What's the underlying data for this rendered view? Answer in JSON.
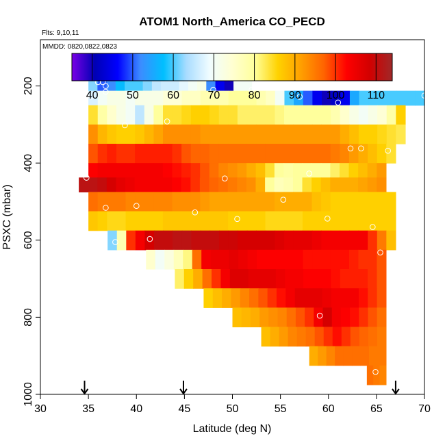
{
  "chart_data": {
    "type": "heatmap",
    "title": "ATOM1 North_America CO_PECD",
    "flights_label": "Flts: 9,10,11",
    "dates_label": "MMDD: 0820,0822,0823",
    "xlabel": "Latitude (deg N)",
    "ylabel": "PSXC (mbar)",
    "xlim": [
      30,
      70
    ],
    "ylim": [
      1000,
      80
    ],
    "xticks": [
      30,
      35,
      40,
      45,
      50,
      55,
      60,
      65,
      70
    ],
    "yticks": [
      200,
      400,
      600,
      800,
      1000
    ],
    "colorbar": {
      "range": [
        35,
        114
      ],
      "ticks": [
        40,
        50,
        60,
        70,
        80,
        90,
        100,
        110
      ],
      "colors": [
        "#7a00e6",
        "#0000b4",
        "#0000ff",
        "#3c8cff",
        "#00bfff",
        "#a8dcff",
        "#f0fcff",
        "#ffffd2",
        "#ffff9b",
        "#ffd200",
        "#ffa000",
        "#ff6400",
        "#ff0000",
        "#d20000",
        "#a02828"
      ]
    },
    "cells": [
      {
        "p": 200,
        "lat_min": 35,
        "lat_max": 52,
        "values": [
          62,
          50,
          52,
          57,
          60,
          60,
          62,
          65,
          66,
          66,
          68,
          70,
          72,
          52,
          45,
          40,
          70,
          70
        ]
      },
      {
        "p": 225,
        "lat_min": 35,
        "lat_max": 70,
        "values": [
          67,
          70,
          72,
          72,
          70,
          72,
          72,
          72,
          74,
          74,
          76,
          76,
          78,
          78,
          78,
          80,
          80,
          80,
          78,
          76,
          70,
          60,
          55,
          50,
          45,
          40,
          42,
          45,
          55,
          60,
          60,
          60,
          60,
          60,
          60,
          60
        ]
      },
      {
        "p": 275,
        "lat_min": 35,
        "lat_max": 68,
        "values": [
          84,
          79,
          75,
          72,
          70,
          65,
          72,
          80,
          84,
          84,
          85,
          86,
          86,
          85,
          84,
          84,
          82,
          82,
          82,
          82,
          81,
          80,
          80,
          80,
          80,
          80,
          78,
          75,
          72,
          70,
          72,
          74,
          79,
          86
        ]
      },
      {
        "p": 325,
        "lat_min": 35,
        "lat_max": 68,
        "values": [
          93,
          89,
          87,
          86,
          86,
          87,
          89,
          91,
          93,
          93,
          93,
          93,
          92,
          92,
          92,
          92,
          92,
          92,
          92,
          92,
          92,
          92,
          92,
          92,
          92,
          92,
          92,
          90,
          88,
          86,
          86,
          85,
          84,
          83
        ]
      },
      {
        "p": 375,
        "lat_min": 35,
        "lat_max": 67,
        "values": [
          98,
          100,
          101,
          100,
          100,
          101,
          101,
          101,
          101,
          100,
          98,
          97,
          97,
          96,
          96,
          96,
          96,
          96,
          96,
          96,
          96,
          96,
          96,
          96,
          96,
          96,
          95,
          94,
          92,
          90,
          88,
          86,
          84
        ]
      },
      {
        "p": 425,
        "lat_min": 35,
        "lat_max": 66,
        "values": [
          103,
          104,
          104,
          104,
          104,
          104,
          104,
          104,
          103,
          102,
          101,
          100,
          98,
          96,
          94,
          93,
          92,
          90,
          88,
          84,
          80,
          79,
          80,
          80,
          80,
          80,
          82,
          84,
          86,
          88,
          90,
          92
        ]
      },
      {
        "p": 450,
        "lat_min": 34,
        "lat_max": 66,
        "values": [
          111,
          111,
          110,
          108,
          106,
          105,
          104,
          104,
          104,
          104,
          103,
          102,
          100,
          98,
          97,
          96,
          95,
          94,
          93,
          90,
          80,
          77,
          78,
          80,
          84,
          86,
          88,
          90,
          90,
          90,
          91,
          92,
          93
        ]
      },
      {
        "p": 500,
        "lat_min": 35,
        "lat_max": 67,
        "values": [
          96,
          95,
          95,
          95,
          94,
          94,
          94,
          94,
          94,
          93,
          93,
          93,
          92,
          91,
          91,
          91,
          91,
          91,
          91,
          91,
          90,
          90,
          90,
          90,
          88,
          87,
          86,
          86,
          86,
          86,
          86,
          86,
          86
        ]
      },
      {
        "p": 550,
        "lat_min": 35,
        "lat_max": 67,
        "values": [
          87,
          86,
          85,
          85,
          86,
          86,
          86,
          86,
          87,
          87,
          87,
          87,
          87,
          87,
          87,
          86,
          86,
          86,
          86,
          85,
          85,
          85,
          85,
          86,
          86,
          86,
          86,
          86,
          86,
          86,
          86,
          86,
          86
        ]
      },
      {
        "p": 600,
        "lat_min": 37,
        "lat_max": 67,
        "values": [
          62,
          78,
          100,
          104,
          108,
          110,
          110,
          111,
          111,
          110,
          110,
          110,
          109,
          109,
          108,
          108,
          108,
          108,
          107,
          106,
          106,
          106,
          105,
          104,
          104,
          104,
          104,
          104,
          100,
          95,
          88
        ]
      },
      {
        "p": 650,
        "lat_min": 41,
        "lat_max": 66,
        "values": [
          75,
          70,
          73,
          77,
          81,
          96,
          104,
          105,
          105,
          106,
          105,
          104,
          103,
          103,
          103,
          103,
          103,
          102,
          102,
          102,
          102,
          102,
          101,
          100,
          100,
          98
        ]
      },
      {
        "p": 700,
        "lat_min": 44,
        "lat_max": 66,
        "values": [
          82,
          86,
          90,
          96,
          100,
          104,
          107,
          107,
          106,
          106,
          106,
          105,
          104,
          104,
          103,
          103,
          103,
          102,
          101,
          101,
          101,
          100,
          98
        ]
      },
      {
        "p": 750,
        "lat_min": 47,
        "lat_max": 66,
        "values": [
          86,
          88,
          90,
          92,
          94,
          96,
          98,
          100,
          102,
          104,
          106,
          106,
          106,
          105,
          104,
          104,
          104,
          102,
          100,
          98
        ]
      },
      {
        "p": 800,
        "lat_min": 50,
        "lat_max": 66,
        "values": [
          88,
          89,
          90,
          92,
          93,
          94,
          96,
          98,
          100,
          104,
          108,
          104,
          103,
          102,
          100,
          98,
          96
        ]
      },
      {
        "p": 850,
        "lat_min": 53,
        "lat_max": 66,
        "values": [
          88,
          90,
          92,
          94,
          95,
          96,
          98,
          100,
          102,
          100,
          98,
          97,
          96,
          95
        ]
      },
      {
        "p": 900,
        "lat_min": 58,
        "lat_max": 66,
        "values": [
          90,
          92,
          94,
          96,
          96,
          96,
          96,
          95,
          95
        ]
      },
      {
        "p": 950,
        "lat_min": 64,
        "lat_max": 66,
        "values": [
          96,
          95,
          94
        ]
      }
    ],
    "observations": [
      {
        "lat": 36,
        "p": 190
      },
      {
        "lat": 36.5,
        "p": 190
      },
      {
        "lat": 36.8,
        "p": 200
      },
      {
        "lat": 36.8,
        "p": 215
      },
      {
        "lat": 35.3,
        "p": 227
      },
      {
        "lat": 52,
        "p": 210
      },
      {
        "lat": 57,
        "p": 228
      },
      {
        "lat": 61,
        "p": 243
      },
      {
        "lat": 48,
        "p": 210
      },
      {
        "lat": 70,
        "p": 225
      },
      {
        "lat": 38.8,
        "p": 302
      },
      {
        "lat": 43.2,
        "p": 292
      },
      {
        "lat": 62.3,
        "p": 362
      },
      {
        "lat": 63.4,
        "p": 362
      },
      {
        "lat": 66.2,
        "p": 368
      },
      {
        "lat": 34.8,
        "p": 438
      },
      {
        "lat": 49.2,
        "p": 440
      },
      {
        "lat": 58,
        "p": 427
      },
      {
        "lat": 36.8,
        "p": 516
      },
      {
        "lat": 40,
        "p": 511
      },
      {
        "lat": 46.1,
        "p": 528
      },
      {
        "lat": 55.3,
        "p": 495
      },
      {
        "lat": 59.9,
        "p": 544
      },
      {
        "lat": 64.6,
        "p": 566
      },
      {
        "lat": 37.8,
        "p": 605
      },
      {
        "lat": 41.4,
        "p": 597
      },
      {
        "lat": 65.4,
        "p": 632
      },
      {
        "lat": 59.1,
        "p": 796
      },
      {
        "lat": 64.9,
        "p": 942
      },
      {
        "lat": 50.5,
        "p": 545
      }
    ],
    "arrow_latitudes": [
      34.6,
      44.9,
      67.0
    ]
  }
}
